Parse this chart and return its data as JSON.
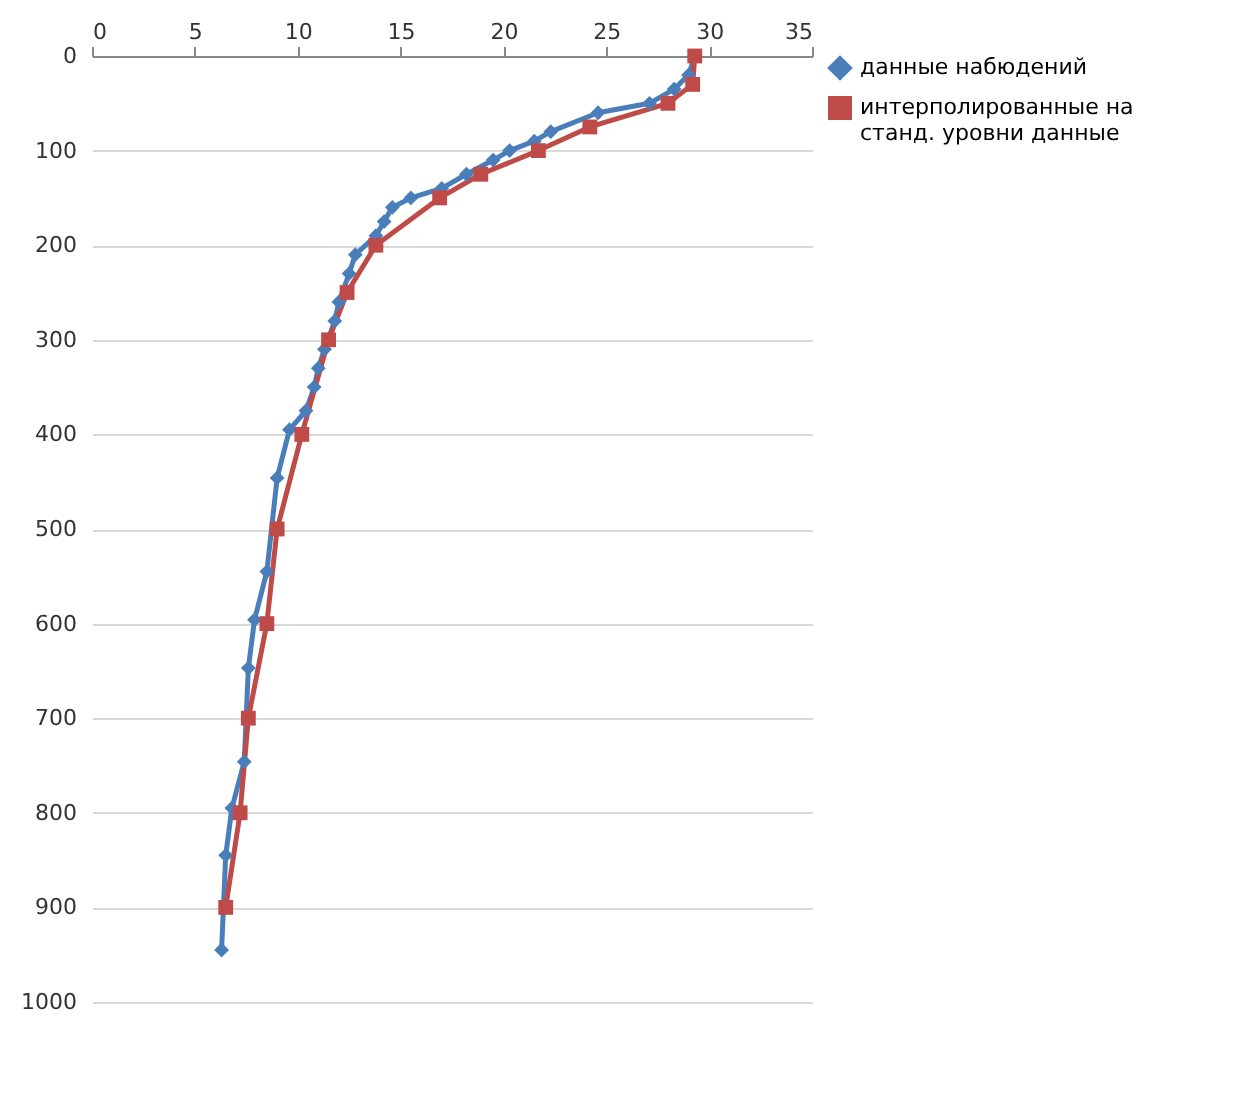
{
  "chart_data": {
    "type": "line",
    "xlim": [
      0,
      35
    ],
    "xticks": [
      0,
      5,
      10,
      15,
      20,
      25,
      30,
      35
    ],
    "ylim": [
      1000,
      0
    ],
    "yticks": [
      0,
      100,
      200,
      300,
      400,
      500,
      600,
      700,
      800,
      900,
      1000
    ],
    "grid": "y",
    "legend": "right",
    "series": [
      {
        "name": "данные набюдений",
        "color": "#4a7ebb",
        "marker": "diamond",
        "x": [
          29.3,
          29,
          28.3,
          27.1,
          24.6,
          22.3,
          21.5,
          20.3,
          19.5,
          18.2,
          17,
          15.5,
          14.6,
          14.2,
          13.8,
          12.8,
          12.5,
          12,
          11.8,
          11.3,
          11,
          10.8,
          10.4,
          9.6,
          9,
          8.5,
          7.9,
          7.6,
          7.4,
          6.8,
          6.5,
          6.3
        ],
        "values": [
          0,
          20,
          35,
          50,
          60,
          80,
          90,
          100,
          110,
          125,
          140,
          150,
          160,
          175,
          190,
          210,
          230,
          260,
          280,
          310,
          330,
          350,
          375,
          395,
          446,
          545,
          596,
          647,
          746,
          795,
          845,
          945
        ]
      },
      {
        "name": "интерполированные на станд. уровни данные",
        "color": "#be4b48",
        "marker": "square",
        "x": [
          29.3,
          29.2,
          28,
          24.2,
          21.7,
          18.9,
          16.9,
          13.8,
          12.4,
          11.5,
          10.2,
          9,
          8.5,
          7.6,
          7.2,
          6.5
        ],
        "values": [
          0,
          30,
          50,
          75,
          100,
          125,
          150,
          200,
          250,
          300,
          400,
          500,
          600,
          700,
          800,
          900
        ]
      }
    ]
  }
}
